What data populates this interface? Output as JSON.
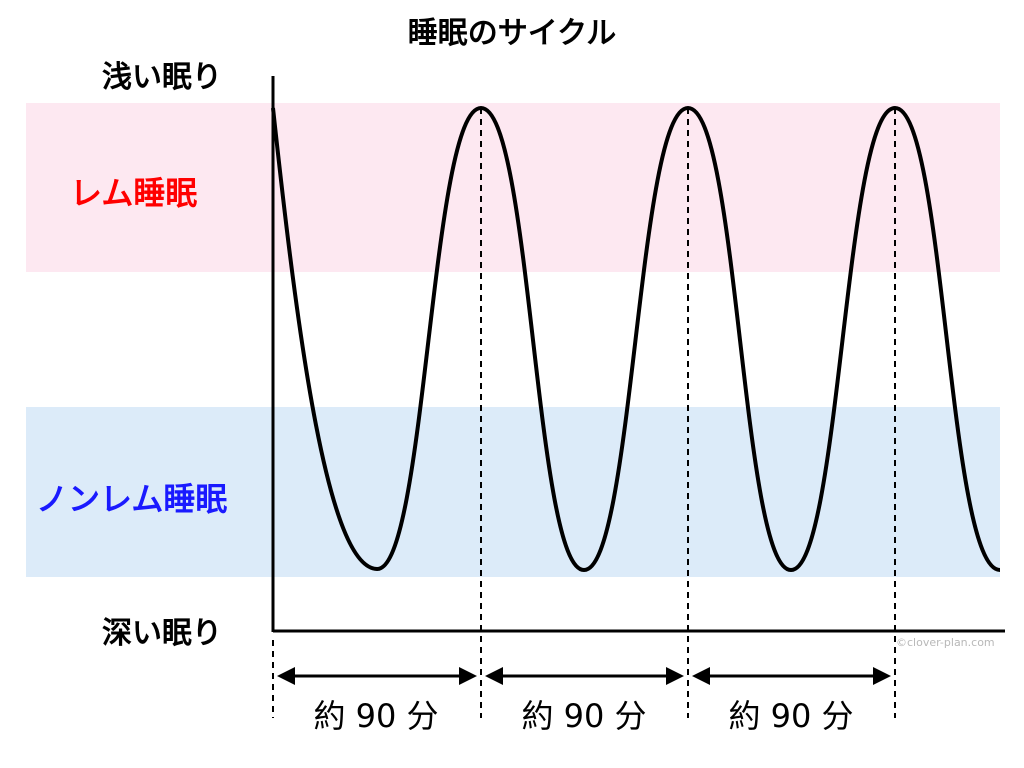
{
  "title": "睡眠のサイクル",
  "y_axis": {
    "top_label": "浅い眠り",
    "bottom_label": "深い眠り"
  },
  "bands": {
    "rem": {
      "label": "レム睡眠",
      "fill": "#fde8f1",
      "text_color": "#ff0000"
    },
    "nrem": {
      "label": "ノンレム睡眠",
      "fill": "#dcebf9",
      "text_color": "#1a1aff"
    }
  },
  "cycles": [
    {
      "label": "約 90 分"
    },
    {
      "label": "約 90 分"
    },
    {
      "label": "約 90 分"
    }
  ],
  "credit": "©clover-plan.com",
  "colors": {
    "line": "#000000",
    "background": "#ffffff"
  }
}
